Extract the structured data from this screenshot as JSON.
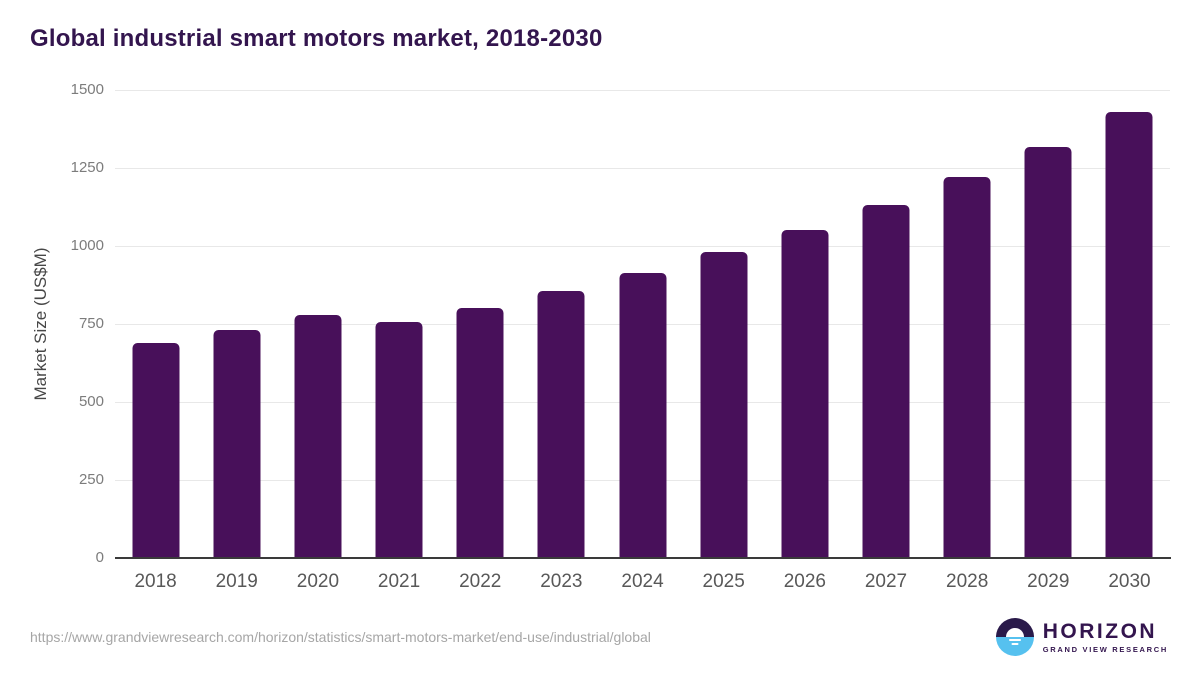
{
  "title": "Global industrial smart motors market, 2018-2030",
  "chart_data": {
    "type": "bar",
    "title": "Global industrial smart motors market, 2018-2030",
    "categories": [
      "2018",
      "2019",
      "2020",
      "2021",
      "2022",
      "2023",
      "2024",
      "2025",
      "2026",
      "2027",
      "2028",
      "2029",
      "2030"
    ],
    "values": [
      690,
      730,
      778,
      755,
      800,
      855,
      913,
      980,
      1050,
      1133,
      1220,
      1318,
      1430
    ],
    "xlabel": "",
    "ylabel": "Market Size (US$M)",
    "ylim": [
      0,
      1500
    ],
    "yticks": [
      0,
      250,
      500,
      750,
      1000,
      1250,
      1500
    ],
    "grid": "horizontal-only",
    "legend": "none",
    "bar_color": "#48105a"
  },
  "colors": {
    "bar": "#48105a",
    "title": "#33154e",
    "axis_line": "#3a3a3a",
    "gridline": "#e8e8e8",
    "logo_navy": "#2a1a4a",
    "logo_blue": "#56c1ef"
  },
  "footer": {
    "source_url": "https://www.grandviewresearch.com/horizon/statistics/smart-motors-market/end-use/industrial/global",
    "logo": {
      "name": "HORIZON",
      "subtitle": "GRAND VIEW RESEARCH"
    }
  }
}
